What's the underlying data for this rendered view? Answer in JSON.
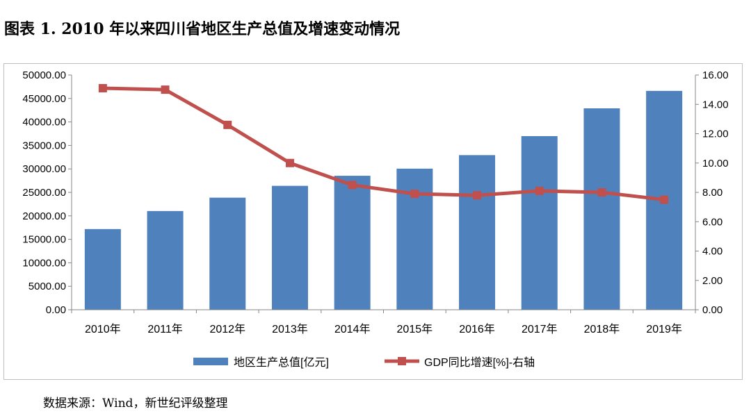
{
  "title": "图表 1. 2010 年以来四川省地区生产总值及增速变动情况",
  "source": "数据来源：Wind，新世纪评级整理",
  "chart_data": {
    "type": "bar+line",
    "categories": [
      "2010年",
      "2011年",
      "2012年",
      "2013年",
      "2014年",
      "2015年",
      "2016年",
      "2017年",
      "2018年",
      "2019年"
    ],
    "series": [
      {
        "name": "地区生产总值[亿元]",
        "type": "bar",
        "axis": "left",
        "color": "#4f81bd",
        "values": [
          17185,
          21027,
          23873,
          26392,
          28537,
          30053,
          32935,
          36980,
          42902,
          46616
        ]
      },
      {
        "name": "GDP同比增速[%]-右轴",
        "type": "line",
        "axis": "right",
        "color": "#c0504d",
        "values": [
          15.1,
          15.0,
          12.6,
          10.0,
          8.5,
          7.9,
          7.8,
          8.1,
          8.0,
          7.5
        ]
      }
    ],
    "y_left": {
      "ylim": [
        0,
        50000
      ],
      "ticks": [
        "0.00",
        "5000.00",
        "10000.00",
        "15000.00",
        "20000.00",
        "25000.00",
        "30000.00",
        "35000.00",
        "40000.00",
        "45000.00",
        "50000.00"
      ]
    },
    "y_right": {
      "ylim": [
        0,
        16
      ],
      "ticks": [
        "0.00",
        "2.00",
        "4.00",
        "6.00",
        "8.00",
        "10.00",
        "12.00",
        "14.00",
        "16.00"
      ]
    },
    "grid": false,
    "legend": "bottom"
  }
}
